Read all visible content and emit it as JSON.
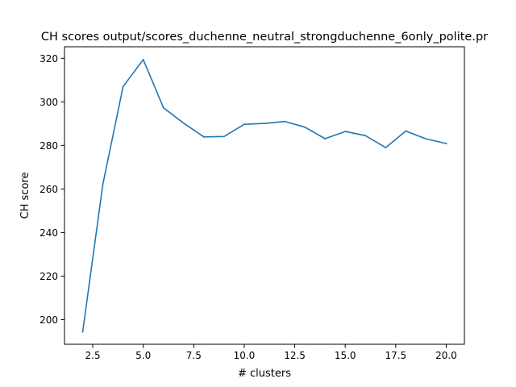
{
  "chart_data": {
    "type": "line",
    "title": "CH scores output/scores_duchenne_neutral_strongduchenne_6only_polite.pr",
    "xlabel": "# clusters",
    "ylabel": "CH score",
    "xlim": [
      1.1,
      20.9
    ],
    "ylim": [
      188.7,
      325.3
    ],
    "x_ticks": [
      2.5,
      5.0,
      7.5,
      10.0,
      12.5,
      15.0,
      17.5,
      20.0
    ],
    "x_tick_labels": [
      "2.5",
      "5.0",
      "7.5",
      "10.0",
      "12.5",
      "15.0",
      "17.5",
      "20.0"
    ],
    "y_ticks": [
      200,
      220,
      240,
      260,
      280,
      300,
      320
    ],
    "y_tick_labels": [
      "200",
      "220",
      "240",
      "260",
      "280",
      "300",
      "320"
    ],
    "grid": false,
    "series": [
      {
        "color": "#1f77b4",
        "x": [
          2,
          3,
          4,
          5,
          6,
          7,
          8,
          9,
          10,
          11,
          12,
          13,
          14,
          15,
          16,
          17,
          18,
          19,
          20
        ],
        "y": [
          194.4,
          262.2,
          307.0,
          319.4,
          297.3,
          290.2,
          283.9,
          284.1,
          289.7,
          290.1,
          291.0,
          288.4,
          283.1,
          286.4,
          284.5,
          279.0,
          286.6,
          283.0,
          280.9
        ]
      }
    ]
  }
}
